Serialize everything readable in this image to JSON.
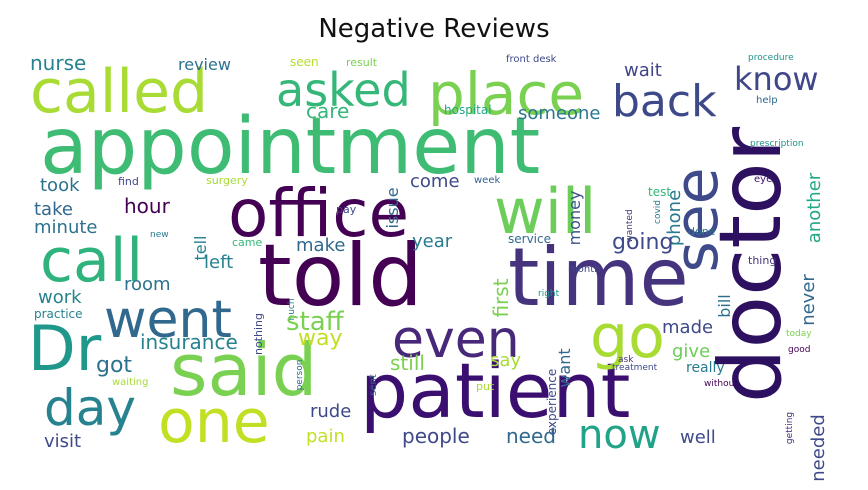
{
  "chart_data": {
    "type": "wordcloud",
    "title": "Negative Reviews",
    "words": [
      {
        "text": "appointment",
        "size": 78,
        "color": "#3fbc73"
      },
      {
        "text": "told",
        "size": 86,
        "color": "#440154"
      },
      {
        "text": "time",
        "size": 80,
        "color": "#46337e"
      },
      {
        "text": "doctor",
        "size": 86,
        "color": "#2d1160",
        "rotate": -90
      },
      {
        "text": "patient",
        "size": 76,
        "color": "#3b0f70"
      },
      {
        "text": "office",
        "size": 66,
        "color": "#440154"
      },
      {
        "text": "said",
        "size": 72,
        "color": "#7ad151"
      },
      {
        "text": "called",
        "size": 60,
        "color": "#a8db34"
      },
      {
        "text": "place",
        "size": 58,
        "color": "#7ad151"
      },
      {
        "text": "will",
        "size": 62,
        "color": "#6ccd5a"
      },
      {
        "text": "call",
        "size": 60,
        "color": "#2eb37c"
      },
      {
        "text": "one",
        "size": 60,
        "color": "#c2df23"
      },
      {
        "text": "Dr",
        "size": 62,
        "color": "#1f988b"
      },
      {
        "text": "went",
        "size": 52,
        "color": "#31688e"
      },
      {
        "text": "even",
        "size": 52,
        "color": "#482878"
      },
      {
        "text": "go",
        "size": 60,
        "color": "#a8db34"
      },
      {
        "text": "day",
        "size": 50,
        "color": "#26828e"
      },
      {
        "text": "asked",
        "size": 46,
        "color": "#35b779"
      },
      {
        "text": "back",
        "size": 44,
        "color": "#3e4989"
      },
      {
        "text": "see",
        "size": 60,
        "color": "#3e4a89",
        "rotate": -90
      },
      {
        "text": "know",
        "size": 32,
        "color": "#3f4788"
      },
      {
        "text": "now",
        "size": 40,
        "color": "#20a386"
      },
      {
        "text": "nurse",
        "size": 20,
        "color": "#26828e"
      },
      {
        "text": "review",
        "size": 16,
        "color": "#2c728e"
      },
      {
        "text": "seen",
        "size": 12,
        "color": "#b5de2b"
      },
      {
        "text": "result",
        "size": 11,
        "color": "#7ad151"
      },
      {
        "text": "front desk",
        "size": 10,
        "color": "#3e4989"
      },
      {
        "text": "procedure",
        "size": 9,
        "color": "#21918c"
      },
      {
        "text": "wait",
        "size": 18,
        "color": "#414487"
      },
      {
        "text": "care",
        "size": 20,
        "color": "#35b779"
      },
      {
        "text": "hospital",
        "size": 12,
        "color": "#22a884"
      },
      {
        "text": "someone",
        "size": 18,
        "color": "#2a788e"
      },
      {
        "text": "help",
        "size": 10,
        "color": "#31688e"
      },
      {
        "text": "prescription",
        "size": 9,
        "color": "#21918c"
      },
      {
        "text": "issue",
        "size": 16,
        "color": "#31688e",
        "rotate": -90
      },
      {
        "text": "money",
        "size": 16,
        "color": "#3b528b",
        "rotate": -90
      },
      {
        "text": "phone",
        "size": 18,
        "color": "#2a788e",
        "rotate": -90
      },
      {
        "text": "another",
        "size": 18,
        "color": "#22a884",
        "rotate": -90
      },
      {
        "text": "took",
        "size": 18,
        "color": "#2c728e"
      },
      {
        "text": "find",
        "size": 11,
        "color": "#3e4989"
      },
      {
        "text": "surgery",
        "size": 11,
        "color": "#a8db34"
      },
      {
        "text": "come",
        "size": 18,
        "color": "#3e4989"
      },
      {
        "text": "week",
        "size": 10,
        "color": "#355f8d"
      },
      {
        "text": "wanted",
        "size": 9,
        "color": "#46337e",
        "rotate": -90
      },
      {
        "text": "covid",
        "size": 9,
        "color": "#287c8e",
        "rotate": -90
      },
      {
        "text": "test",
        "size": 12,
        "color": "#35b779"
      },
      {
        "text": "eye",
        "size": 10,
        "color": "#3b0f70"
      },
      {
        "text": "take",
        "size": 18,
        "color": "#31688e"
      },
      {
        "text": "hour",
        "size": 20,
        "color": "#440154"
      },
      {
        "text": "tell",
        "size": 16,
        "color": "#26828e",
        "rotate": -90
      },
      {
        "text": "pay",
        "size": 11,
        "color": "#3e4989"
      },
      {
        "text": "minute",
        "size": 18,
        "color": "#2c728e"
      },
      {
        "text": "new",
        "size": 9,
        "color": "#287c8e"
      },
      {
        "text": "came",
        "size": 11,
        "color": "#35b779"
      },
      {
        "text": "year",
        "size": 18,
        "color": "#287c8e"
      },
      {
        "text": "service",
        "size": 12,
        "color": "#31688e"
      },
      {
        "text": "done",
        "size": 11,
        "color": "#2c728e"
      },
      {
        "text": "make",
        "size": 18,
        "color": "#31688e"
      },
      {
        "text": "going",
        "size": 22,
        "color": "#3e4989"
      },
      {
        "text": "thing",
        "size": 11,
        "color": "#46337e"
      },
      {
        "text": "left",
        "size": 18,
        "color": "#26828e"
      },
      {
        "text": "room",
        "size": 18,
        "color": "#2c728e"
      },
      {
        "text": "first",
        "size": 20,
        "color": "#7ad151",
        "rotate": -90
      },
      {
        "text": "month",
        "size": 10,
        "color": "#3e4989"
      },
      {
        "text": "right",
        "size": 9,
        "color": "#21918c"
      },
      {
        "text": "bill",
        "size": 16,
        "color": "#2c728e",
        "rotate": -90
      },
      {
        "text": "never",
        "size": 18,
        "color": "#31688e",
        "rotate": -90
      },
      {
        "text": "work",
        "size": 18,
        "color": "#26828e"
      },
      {
        "text": "nothing",
        "size": 11,
        "color": "#3e4989",
        "rotate": -90
      },
      {
        "text": "much",
        "size": 9,
        "color": "#287c8e",
        "rotate": -90
      },
      {
        "text": "practice",
        "size": 12,
        "color": "#26828e"
      },
      {
        "text": "staff",
        "size": 26,
        "color": "#7ad151"
      },
      {
        "text": "way",
        "size": 22,
        "color": "#c2df23"
      },
      {
        "text": "made",
        "size": 18,
        "color": "#3e4989"
      },
      {
        "text": "insurance",
        "size": 20,
        "color": "#26828e"
      },
      {
        "text": "person",
        "size": 9,
        "color": "#31688e",
        "rotate": -90
      },
      {
        "text": "give",
        "size": 18,
        "color": "#6ccd5a"
      },
      {
        "text": "today",
        "size": 9,
        "color": "#7ad151"
      },
      {
        "text": "got",
        "size": 22,
        "color": "#2c728e"
      },
      {
        "text": "still",
        "size": 20,
        "color": "#7ad151"
      },
      {
        "text": "say",
        "size": 18,
        "color": "#a8db34"
      },
      {
        "text": "want",
        "size": 16,
        "color": "#31688e",
        "rotate": -90
      },
      {
        "text": "ask",
        "size": 9,
        "color": "#46337e"
      },
      {
        "text": "good",
        "size": 9,
        "color": "#440154"
      },
      {
        "text": "waiting",
        "size": 10,
        "color": "#a8db34"
      },
      {
        "text": "sent",
        "size": 10,
        "color": "#31688e",
        "rotate": -90
      },
      {
        "text": "experience",
        "size": 12,
        "color": "#3e4989",
        "rotate": -90
      },
      {
        "text": "treatment",
        "size": 9,
        "color": "#3e4989"
      },
      {
        "text": "really",
        "size": 14,
        "color": "#287c8e"
      },
      {
        "text": "without",
        "size": 9,
        "color": "#440154"
      },
      {
        "text": "put",
        "size": 11,
        "color": "#a8db34"
      },
      {
        "text": "needed",
        "size": 18,
        "color": "#3e4989",
        "rotate": -90
      },
      {
        "text": "getting",
        "size": 9,
        "color": "#482878",
        "rotate": -90
      },
      {
        "text": "rude",
        "size": 18,
        "color": "#3e4989"
      },
      {
        "text": "visit",
        "size": 18,
        "color": "#3e4989"
      },
      {
        "text": "pain",
        "size": 18,
        "color": "#c2df23"
      },
      {
        "text": "people",
        "size": 20,
        "color": "#3e4989"
      },
      {
        "text": "need",
        "size": 20,
        "color": "#31688e"
      },
      {
        "text": "well",
        "size": 18,
        "color": "#3e4989"
      }
    ]
  }
}
